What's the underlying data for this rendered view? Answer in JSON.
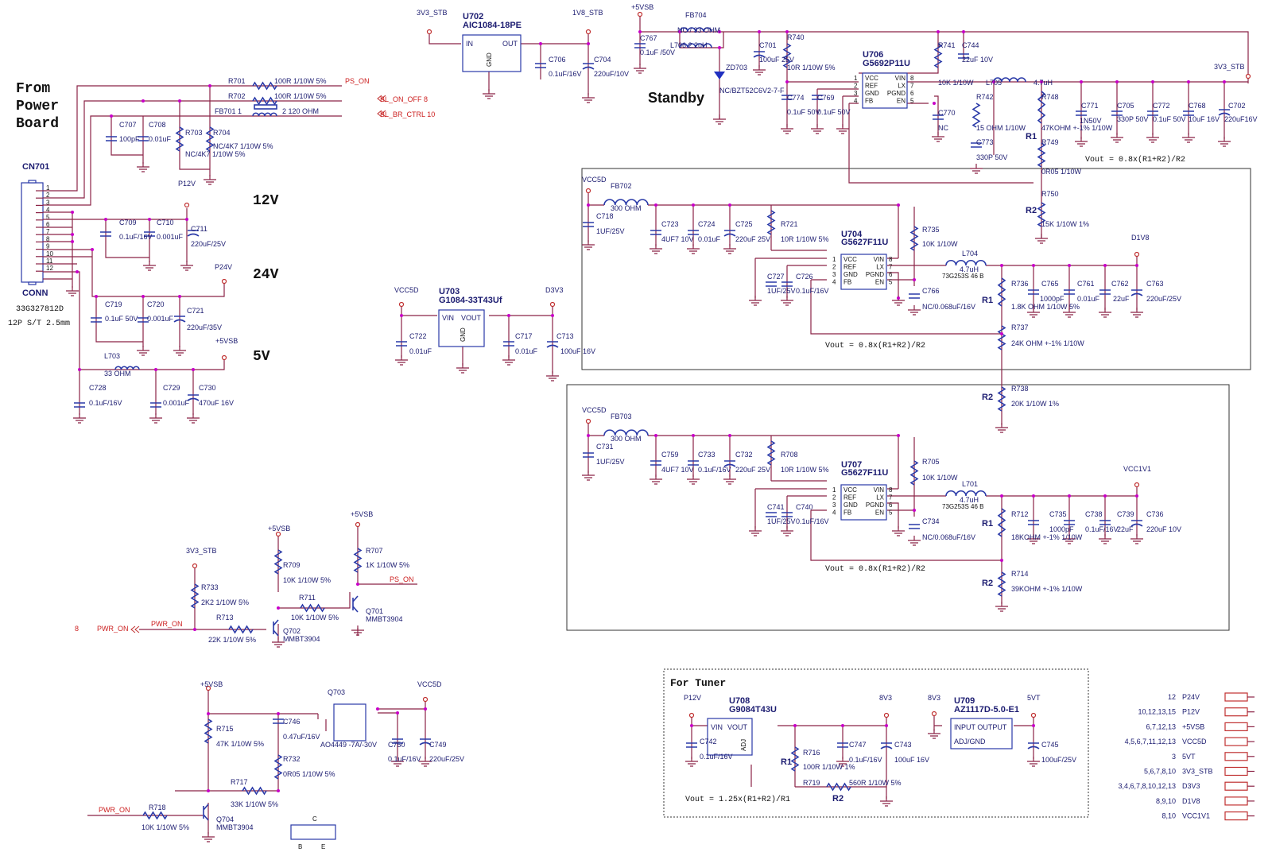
{
  "colors": {
    "wire": "#8b2346",
    "text": "#1b1b70",
    "signal": "#cc2020",
    "junction": "#c800c8",
    "symbol": "#2a3aa8"
  },
  "titles": {
    "from": "From",
    "power": "Power",
    "board": "Board",
    "v12": "12V",
    "v24": "24V",
    "v5": "5V",
    "standby": "Standby",
    "tuner": "For Tuner"
  },
  "connector": {
    "ref": "CN701",
    "name": "CONN",
    "part": "33G327812D",
    "desc": "12P S/T 2.5mm",
    "pins": [
      "1",
      "2",
      "3",
      "4",
      "5",
      "6",
      "7",
      "8",
      "9",
      "10",
      "11",
      "12"
    ]
  },
  "signals": {
    "ps_on": "PS_ON",
    "bl_on_off": "BL_ON_OFF  8",
    "bl_br_ctrl": "BL_BR_CTRL  10",
    "pwr_on": "PWR_ON",
    "pwr_on_num": "8",
    "ps_on2": "PS_ON",
    "pwr_on3": "PWR_ON"
  },
  "rails": {
    "p12v": "P12V",
    "p24v": "P24V",
    "p5vsb": "+5VSB",
    "v3v3stb": "3V3_STB",
    "v1v8stb": "1V8_STB",
    "v5vsb_top": "+5VSB",
    "v3v3stb_r": "3V3_STB",
    "vcc5d_a": "VCC5D",
    "d3v3": "D3V3",
    "vcc5d_b": "VCC5D",
    "d1v8": "D1V8",
    "vcc5d_c": "VCC5D",
    "vcc1v1": "VCC1V1",
    "v3v3stb_q": "3V3_STB",
    "v5vsb_q1": "+5VSB",
    "v5vsb_q2": "+5VSB",
    "v5vsb_q3": "+5VSB",
    "vcc5d_q": "VCC5D",
    "p12v_t": "P12V",
    "v8v3a": "8V3",
    "v8v3b": "8V3",
    "v5vt": "5VT"
  },
  "l": {
    "r701": "R701",
    "r701v": "100R 1/10W 5%",
    "r702": "R702",
    "r702v": "100R 1/10W 5%",
    "fb701": "FB701  1",
    "fb701v": "2   120 OHM",
    "c707": "C707",
    "c707v": "100pF",
    "c708": "C708",
    "c708v": "0.01uF",
    "r703": "R703",
    "r703v": "NC/4K7 1/10W 5%",
    "r704": "R704",
    "r704v": "NC/4K7 1/10W 5%",
    "c709": "C709",
    "c709v": "0.1uF/16V",
    "c710": "C710",
    "c710v": "0.001uF",
    "c711": "C711",
    "c711v": "220uF/25V",
    "c719": "C719",
    "c719v": "0.1uF 50V",
    "c720": "C720",
    "c720v": "0.001uF",
    "c721": "C721",
    "c721v": "220uF/35V",
    "l703": "L703",
    "l703v": "33 OHM",
    "c728": "C728",
    "c728v": "0.1uF/16V",
    "c729": "C729",
    "c729v": "0.001uF",
    "c730": "C730",
    "c730v": "470uF 16V",
    "u702": "U702",
    "u702p": "AIC1084-18PE",
    "u702in": "IN",
    "u702out": "OUT",
    "u702gnd": "GND",
    "c706": "C706",
    "c706v": "0.1uF/16V",
    "c704": "C704",
    "c704v": "220uF/10V",
    "c767": "C767",
    "c767v": "0.1uF /50V",
    "fb704": "FB704",
    "fb704v": "NC / 33 OHM",
    "l706": "L706  2.2uH",
    "zd703": "ZD703",
    "zd703v": "NC/BZT52C6V2-7-F",
    "c701": "C701",
    "c701v": "100uF 25V",
    "r740": "R740",
    "r740v": "10R 1/10W 5%",
    "c774": "C774",
    "c774v": "0.1uF 50V",
    "c769": "C769",
    "c769v": "0.1uF 50V",
    "u706": "U706",
    "u706p": "G5692P11U",
    "r741": "R741",
    "c744": "C744",
    "c744v": "22uF 10V",
    "r741v": "10K 1/10W",
    "l705": "L705",
    "l705v": "4.7uH",
    "c770": "C770",
    "c770v": "NC",
    "r742": "R742",
    "r742v": "15 OHM 1/10W",
    "c773": "C773",
    "c773v": "330P 50V",
    "r748": "R748",
    "r748v": "47KOHM +-1% 1/10W",
    "c771": "C771",
    "c771v": "1N50V",
    "c705": "C705",
    "c705v": "330P 50V",
    "c772": "C772",
    "c772v": "0.1uF 50V",
    "c768": "C768",
    "c768v": "10uF 16V",
    "c702": "C702",
    "c702v": "220uF16V",
    "r1a": "R1",
    "r749": "R749",
    "r749v": "0R05 1/10W",
    "r750": "R750",
    "r2a": "R2",
    "r750v": "15K 1/10W 1%",
    "vout1": "Vout = 0.8x(R1+R2)/R2",
    "fb702": "FB702",
    "fb702v": "300 OHM",
    "c718": "C718",
    "c718v": "1UF/25V",
    "c723": "C723",
    "c723v": "4UF7 10V",
    "c724": "C724",
    "c724v": "0.01uF",
    "c725": "C725",
    "c725v": "220uF 25V",
    "r721": "R721",
    "r721v": "10R 1/10W 5%",
    "u704": "U704",
    "u704p": "G5627F11U",
    "r735": "R735",
    "r735v": "10K 1/10W",
    "l704": "L704",
    "l704v": "4.7uH",
    "l704p": "73G253S 46  B",
    "c727": "C727",
    "c727v": "1UF/25V",
    "c726": "C726",
    "c726v": "0.1uF/16V",
    "c766": "C766",
    "c766v": "NC/0.068uF/16V",
    "r736": "R736",
    "r736v": "1.8K OHM 1/10W 5%",
    "r1b": "R1",
    "c765": "C765",
    "c765v": "1000pF",
    "c761": "C761",
    "c761v": "0.01uF",
    "c762": "C762",
    "c762v": "22uF",
    "c763": "C763",
    "c763v": "220uF/25V",
    "r737": "R737",
    "r737v": "24K OHM +-1% 1/10W",
    "vout2": "Vout = 0.8x(R1+R2)/R2",
    "r738": "R738",
    "r738v": "20K 1/10W 1%",
    "r2b": "R2",
    "u703": "U703",
    "u703p": "G1084-33T43Uf",
    "u703vin": "VIN",
    "u703vout": "VOUT",
    "u703gnd": "GND",
    "c722": "C722",
    "c722v": "0.01uF",
    "c717": "C717",
    "c717v": "0.01uF",
    "c713": "C713",
    "c713v": "100uF 16V",
    "fb703": "FB703",
    "fb703v": "300 OHM",
    "c731": "C731",
    "c731v": "1UF/25V",
    "c759": "C759",
    "c759v": "4UF7 10V",
    "c733": "C733",
    "c733v": "0.1uF/16V",
    "c732": "C732",
    "c732v": "220uF 25V",
    "r708": "R708",
    "r708v": "10R 1/10W 5%",
    "u707": "U707",
    "u707p": "G5627F11U",
    "r705": "R705",
    "r705v": "10K 1/10W",
    "l701": "L701",
    "l701v": "4.7uH",
    "l701p": "73G253S 46  B",
    "c741": "C741",
    "c741v": "1UF/25V",
    "c740": "C740",
    "c740v": "0.1uF/16V",
    "c734": "C734",
    "c734v": "NC/0.068uF/16V",
    "r712": "R712",
    "r712v": "18KOHM +-1% 1/10W",
    "r1c": "R1",
    "c735": "C735",
    "c735v": "1000pF",
    "c738": "C738",
    "c738v": "0.1uF/16V",
    "c739": "C739",
    "c739v": "22uF",
    "c736": "C736",
    "c736v": "220uF 10V",
    "vout3": "Vout = 0.8x(R1+R2)/R2",
    "r714": "R714",
    "r714v": "39KOHM +-1% 1/10W",
    "r2c": "R2",
    "r733": "R733",
    "r733v": "2K2 1/10W 5%",
    "r713": "R713",
    "r713v": "22K 1/10W 5%",
    "r709": "R709",
    "r709v": "10K 1/10W 5%",
    "r711": "R711",
    "r711v": "10K 1/10W 5%",
    "q702": "Q702",
    "q702v": "MMBT3904",
    "r707": "R707",
    "r707v": "1K 1/10W 5%",
    "q701": "Q701",
    "q701v": "MMBT3904",
    "q703": "Q703",
    "q703v": "AO4449 -7A/-30V",
    "r715": "R715",
    "r715v": "47K 1/10W 5%",
    "c746": "C746",
    "c746v": "0.47uF/16V",
    "r732": "R732",
    "r732v": "0R05 1/10W 5%",
    "c750": "C750",
    "c750v": "0.1uF/16V",
    "c749": "C749",
    "c749v": "220uF/25V",
    "r717": "R717",
    "r717v": "33K 1/10W 5%",
    "r718": "R718",
    "r718v": "10K 1/10W 5%",
    "q704": "Q704",
    "q704v": "MMBT3904",
    "pkg_c": "C",
    "pkg_b": "B",
    "pkg_e": "E",
    "u708": "U708",
    "u708p": "G9084T43U",
    "u708vin": "VIN",
    "u708vout": "VOUT",
    "u708adj": "ADJ",
    "c742": "C742",
    "c742v": "0.1uF/16V",
    "r716": "R716",
    "r716v": "100R 1/10W 1%",
    "r1d": "R1",
    "c747": "C747",
    "c747v": "0.1uF/16V",
    "c743": "C743",
    "c743v": "100uF 16V",
    "r719": "R719",
    "r719v": "560R 1/10W 5%",
    "r2d": "R2",
    "vout4": "Vout = 1.25x(R1+R2)/R1",
    "u709": "U709",
    "u709p": "AZ1117D-5.0-E1",
    "u709io": "INPUT OUTPUT",
    "u709adj": "ADJ/GND",
    "c745": "C745",
    "c745v": "100uF/25V"
  },
  "ic_pins": {
    "vcc": "VCC",
    "ref": "REF",
    "gnd": "GND",
    "fb": "FB",
    "vin": "VIN",
    "lx": "LX",
    "pgnd": "PGND",
    "en": "EN"
  },
  "offpage": [
    {
      "pages": "12",
      "net": "P24V"
    },
    {
      "pages": "10,12,13,15",
      "net": "P12V"
    },
    {
      "pages": "6,7,12,13",
      "net": "+5VSB"
    },
    {
      "pages": "4,5,6,7,11,12,13",
      "net": "VCC5D"
    },
    {
      "pages": "3",
      "net": "5VT"
    },
    {
      "pages": "5,6,7,8,10",
      "net": "3V3_STB"
    },
    {
      "pages": "3,4,6,7,8,10,12,13",
      "net": "D3V3"
    },
    {
      "pages": "8,9,10",
      "net": "D1V8"
    },
    {
      "pages": "8,10",
      "net": "VCC1V1"
    }
  ]
}
